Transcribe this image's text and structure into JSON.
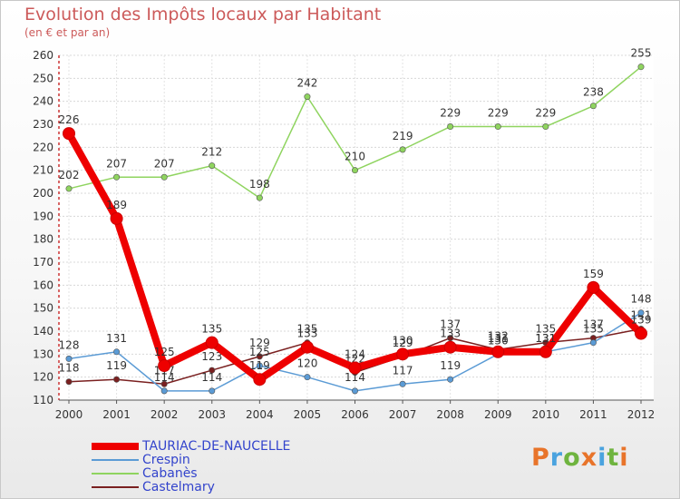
{
  "header": {
    "title": "Evolution des Impôts locaux par Habitant",
    "subtitle": "(en € et par an)"
  },
  "logo": {
    "text": "Proxiti",
    "colors": [
      "#e8742a",
      "#4aa3df",
      "#6fb43f",
      "#e8742a",
      "#4aa3df",
      "#6fb43f",
      "#e8742a"
    ]
  },
  "chart_data": {
    "type": "line",
    "title": "Evolution des Impôts locaux par Habitant",
    "subtitle": "(en € et par an)",
    "xlabel": "",
    "ylabel": "",
    "categories": [
      "2000",
      "2001",
      "2002",
      "2003",
      "2004",
      "2005",
      "2006",
      "2007",
      "2008",
      "2009",
      "2010",
      "2011",
      "2012"
    ],
    "ylim": [
      110,
      260
    ],
    "yticks": [
      110,
      120,
      130,
      140,
      150,
      160,
      170,
      180,
      190,
      200,
      210,
      220,
      230,
      240,
      250,
      260
    ],
    "grid": true,
    "legend_position": "bottom-left",
    "series": [
      {
        "name": "Castelmary",
        "color": "#7a2020",
        "values": [
          118,
          119,
          117,
          123,
          129,
          135,
          122,
          129,
          137,
          132,
          135,
          137,
          141
        ],
        "labels": [
          "118",
          "119",
          "117",
          "123",
          "129",
          "135",
          "122",
          "129",
          "137",
          "132",
          "135",
          "137",
          "141"
        ]
      },
      {
        "name": "Crespin",
        "color": "#5b9bd5",
        "values": [
          128,
          131,
          114,
          114,
          125,
          120,
          114,
          117,
          119,
          130,
          131,
          135,
          148
        ],
        "labels": [
          "128",
          "131",
          "114",
          "114",
          "125",
          "120",
          "114",
          "117",
          "119",
          "130",
          "131",
          "135",
          "148"
        ]
      },
      {
        "name": "Cabanès",
        "color": "#8fd45f",
        "values": [
          202,
          207,
          207,
          212,
          198,
          242,
          210,
          219,
          229,
          229,
          229,
          238,
          255
        ],
        "labels": [
          "202",
          "207",
          "207",
          "212",
          "198",
          "242",
          "210",
          "219",
          "229",
          "229",
          "229",
          "238",
          "255"
        ]
      },
      {
        "name": "TAURIAC-DE-NAUCELLE",
        "color": "#ee0000",
        "values": [
          226,
          189,
          125,
          135,
          119,
          133,
          124,
          130,
          133,
          131,
          131,
          159,
          139
        ],
        "labels": [
          "226",
          "189",
          "125",
          "135",
          "119",
          "133",
          "124",
          "130",
          "133",
          "131",
          "131",
          "159",
          "139"
        ]
      }
    ],
    "legend": [
      "TAURIAC-DE-NAUCELLE",
      "Crespin",
      "Cabanès",
      "Castelmary"
    ]
  }
}
